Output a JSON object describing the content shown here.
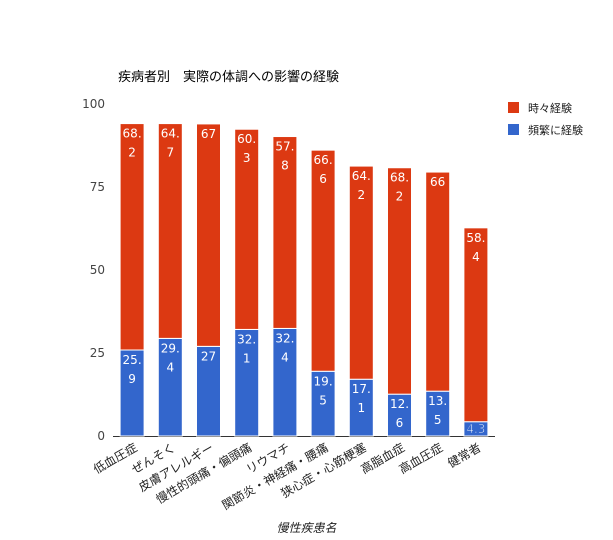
{
  "chart_data": {
    "type": "bar",
    "stacked": true,
    "title": "疾病者別　実際の体調への影響の経験",
    "xlabel": "慢性疾患名",
    "ylabel": "",
    "ylim": [
      0,
      100
    ],
    "yticks": [
      "0",
      "25",
      "50",
      "75",
      "100"
    ],
    "grid": false,
    "legend_position": "right",
    "categories": [
      "低血圧症",
      "ぜんそく",
      "皮膚アレルギー",
      "慢性的頭痛・偏頭痛",
      "リウマチ",
      "関節炎・神経痛・腰痛",
      "狭心症・心筋梗塞",
      "高脂血症",
      "高血圧症",
      "健常者"
    ],
    "series": [
      {
        "name": "頻繁に経験",
        "color": "#3366cc",
        "values": [
          25.9,
          29.4,
          27,
          32.1,
          32.4,
          19.5,
          17.1,
          12.6,
          13.5,
          4.3
        ],
        "labels": [
          [
            "25.",
            "9"
          ],
          [
            "29.",
            "4"
          ],
          [
            "27"
          ],
          [
            "32.",
            "1"
          ],
          [
            "32.",
            "4"
          ],
          [
            "19.",
            "5"
          ],
          [
            "17.",
            "1"
          ],
          [
            "12.",
            "6"
          ],
          [
            "13.",
            "5"
          ],
          [
            "4.3"
          ]
        ]
      },
      {
        "name": "時々経験",
        "color": "#dc3912",
        "values": [
          68.2,
          64.7,
          67,
          60.3,
          57.8,
          66.6,
          64.2,
          68.2,
          66,
          58.4
        ],
        "labels": [
          [
            "68.",
            "2"
          ],
          [
            "64.",
            "7"
          ],
          [
            "67"
          ],
          [
            "60.",
            "3"
          ],
          [
            "57.",
            "8"
          ],
          [
            "66.",
            "6"
          ],
          [
            "64.",
            "2"
          ],
          [
            "68.",
            "2"
          ],
          [
            "66"
          ],
          [
            "58.",
            "4"
          ]
        ]
      }
    ]
  },
  "legend": {
    "items": [
      {
        "label": "時々経験",
        "color": "#dc3912"
      },
      {
        "label": "頻繁に経験",
        "color": "#3366cc"
      }
    ]
  }
}
